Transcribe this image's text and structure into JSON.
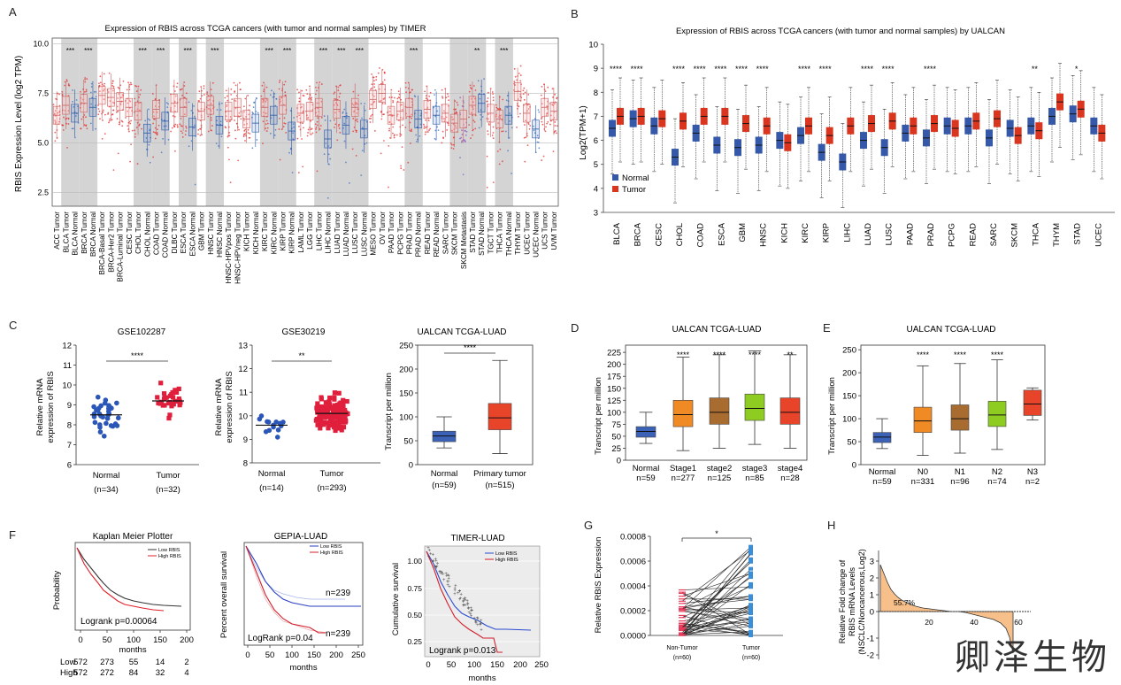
{
  "panel_letters": [
    "A",
    "B",
    "C",
    "D",
    "E",
    "F",
    "G",
    "H"
  ],
  "watermark": "卿泽生物",
  "chart_data": [
    {
      "id": "A",
      "type": "box",
      "title": "Expression of RBIS across TCGA cancers (with tumor and normal samples) by TIMER",
      "ylabel": "RBIS Expression Level (log2 TPM)",
      "yticks": [
        "2.5",
        "5.0",
        "7.5",
        "10.0"
      ],
      "ylim": [
        1.8,
        10.3
      ],
      "categories": [
        "ACC.Tumor",
        "BLCA.Tumor",
        "BLCA.Normal",
        "BRCA.Tumor",
        "BRCA.Normal",
        "BRCA-Basal.Tumor",
        "BRCA-Her2.Tumor",
        "BRCA-Luminal.Tumor",
        "CESC.Tumor",
        "CHOL.Tumor",
        "CHOL.Normal",
        "COAD.Tumor",
        "COAD.Normal",
        "DLBC.Tumor",
        "ESCA.Tumor",
        "ESCA.Normal",
        "GBM.Tumor",
        "HNSC.Tumor",
        "HNSC.Normal",
        "HNSC-HPVpos.Tumor",
        "HNSC-HPVneg.Tumor",
        "KICH.Tumor",
        "KICH.Normal",
        "KIRC.Tumor",
        "KIRC.Normal",
        "KIRP.Tumor",
        "KIRP.Normal",
        "LAML.Tumor",
        "LGG.Tumor",
        "LIHC.Tumor",
        "LIHC.Normal",
        "LUAD.Tumor",
        "LUAD.Normal",
        "LUSC.Tumor",
        "LUSC.Normal",
        "MESO.Tumor",
        "OV.Tumor",
        "PAAD.Tumor",
        "PCPG.Tumor",
        "PRAD.Tumor",
        "PRAD.Normal",
        "READ.Tumor",
        "READ.Normal",
        "SARC.Tumor",
        "SKCM.Tumor",
        "SKCM.Metastasis",
        "STAD.Tumor",
        "STAD.Normal",
        "TGCT.Tumor",
        "THCA.Tumor",
        "THCA.Normal",
        "THYM.Tumor",
        "UCEC.Tumor",
        "UCEC.Normal",
        "UCS.Tumor",
        "UVM.Tumor"
      ],
      "medians": [
        6.4,
        6.9,
        6.5,
        7.0,
        6.8,
        7.4,
        7.3,
        7.1,
        6.8,
        6.6,
        5.5,
        6.7,
        6.1,
        7.0,
        6.8,
        5.8,
        6.6,
        6.9,
        5.9,
        6.6,
        6.8,
        6.2,
        6.0,
        6.8,
        6.4,
        6.9,
        5.6,
        6.5,
        6.6,
        6.8,
        5.2,
        6.7,
        5.9,
        6.8,
        5.7,
        7.2,
        7.5,
        6.4,
        6.6,
        6.8,
        6.2,
        6.7,
        6.4,
        6.5,
        6.0,
        6.2,
        6.9,
        7.0,
        6.5,
        6.2,
        6.4,
        7.6,
        6.5,
        5.7,
        6.8,
        6.6
      ],
      "significance": [
        {
          "category": "BLCA.Tumor",
          "label": "***"
        },
        {
          "category": "BRCA.Tumor",
          "label": "***"
        },
        {
          "category": "CHOL.Tumor",
          "label": "***"
        },
        {
          "category": "COAD.Tumor",
          "label": "***"
        },
        {
          "category": "ESCA.Tumor",
          "label": "***"
        },
        {
          "category": "HNSC.Tumor",
          "label": "***"
        },
        {
          "category": "KIRC.Tumor",
          "label": "***"
        },
        {
          "category": "KIRP.Tumor",
          "label": "***"
        },
        {
          "category": "LIHC.Tumor",
          "label": "***"
        },
        {
          "category": "LUAD.Tumor",
          "label": "***"
        },
        {
          "category": "LUSC.Tumor",
          "label": "***"
        },
        {
          "category": "PRAD.Tumor",
          "label": "***"
        },
        {
          "category": "STAD.Tumor",
          "label": "**"
        },
        {
          "category": "THCA.Tumor",
          "label": "***"
        }
      ]
    },
    {
      "id": "B",
      "type": "box",
      "title": "Expression of RBIS across TCGA cancers (with tumor and normal samples) by UALCAN",
      "ylabel": "Log2(TPM+1)",
      "yticks": [
        "3",
        "4",
        "5",
        "6",
        "7",
        "8",
        "9",
        "10"
      ],
      "ylim": [
        3,
        10
      ],
      "legend": [
        "Normal",
        "Tumor"
      ],
      "categories": [
        "BLCA",
        "BRCA",
        "CESC",
        "CHOL",
        "COAD",
        "ESCA",
        "GBM",
        "HNSC",
        "KICH",
        "KIRC",
        "KIRP",
        "LIHC",
        "LUAD",
        "LUSC",
        "PAAD",
        "PRAD",
        "PCPG",
        "READ",
        "SARC",
        "SKCM",
        "THCA",
        "THYM",
        "STAD",
        "UCEC"
      ],
      "normal_medians": [
        6.5,
        6.9,
        6.6,
        5.3,
        6.3,
        5.8,
        5.7,
        5.8,
        6.0,
        6.2,
        5.5,
        5.1,
        6.0,
        5.7,
        6.3,
        6.1,
        6.6,
        6.6,
        6.1,
        6.5,
        6.6,
        7.0,
        7.1,
        6.6
      ],
      "tumor_medians": [
        7.0,
        7.0,
        6.9,
        6.8,
        7.0,
        7.0,
        6.7,
        6.6,
        5.9,
        6.6,
        6.2,
        6.6,
        6.7,
        6.8,
        6.6,
        6.7,
        6.5,
        6.8,
        6.9,
        6.2,
        6.4,
        7.6,
        7.3,
        6.3
      ],
      "significance": [
        "****",
        "****",
        "",
        "****",
        "****",
        "****",
        "****",
        "****",
        "",
        "****",
        "****",
        "",
        "****",
        "****",
        "",
        "****",
        "",
        "",
        "",
        "",
        "**",
        "",
        "*",
        ""
      ]
    },
    {
      "id": "C1",
      "type": "scatter",
      "title": "GSE102287",
      "ylabel_lines": [
        "Relative mRNA",
        "expression of RBIS"
      ],
      "yticks": [
        "6",
        "7",
        "8",
        "9",
        "10",
        "11",
        "12"
      ],
      "ylim": [
        6,
        12
      ],
      "groups": [
        {
          "name": "Normal",
          "n": "(n=34)",
          "mean": 8.5
        },
        {
          "name": "Tumor",
          "n": "(n=32)",
          "mean": 9.2
        }
      ],
      "significance": "****"
    },
    {
      "id": "C2",
      "type": "scatter",
      "title": "GSE30219",
      "ylabel_lines": [
        "Relative mRNA",
        "expression of RBIS"
      ],
      "yticks": [
        "8",
        "9",
        "10",
        "11",
        "12",
        "13"
      ],
      "ylim": [
        8,
        13
      ],
      "groups": [
        {
          "name": "Normal",
          "n": "(n=14)",
          "mean": 9.6
        },
        {
          "name": "Tumor",
          "n": "(n=293)",
          "mean": 10.1
        }
      ],
      "significance": "**"
    },
    {
      "id": "C3",
      "type": "box",
      "title": "UALCAN TCGA-LUAD",
      "ylabel": "Transcript per million",
      "yticks": [
        "0",
        "50",
        "100",
        "150",
        "200",
        "250"
      ],
      "ylim": [
        0,
        250
      ],
      "groups": [
        {
          "name": "Normal",
          "n": "(n=59)",
          "median": 60
        },
        {
          "name": "Primary tumor",
          "n": "(n=515)",
          "median": 98
        }
      ],
      "significance": "****"
    },
    {
      "id": "D",
      "type": "box",
      "title": "UALCAN TCGA-LUAD",
      "ylabel": "Transcript per million",
      "yticks": [
        "0",
        "25",
        "50",
        "75",
        "100",
        "125",
        "150",
        "175",
        "200",
        "225"
      ],
      "ylim": [
        0,
        240
      ],
      "groups": [
        {
          "name": "Normal",
          "n": "n=59",
          "median": 60
        },
        {
          "name": "Stage1",
          "n": "n=277",
          "median": 95
        },
        {
          "name": "stage2",
          "n": "n=125",
          "median": 100
        },
        {
          "name": "stage3",
          "n": "n=85",
          "median": 108
        },
        {
          "name": "stage4",
          "n": "n=28",
          "median": 100
        }
      ],
      "significance": [
        "",
        "****",
        "****",
        "****",
        "**"
      ]
    },
    {
      "id": "E",
      "type": "box",
      "title": "UALCAN TCGA-LUAD",
      "ylabel": "Transcript per million",
      "yticks": [
        "0",
        "50",
        "100",
        "150",
        "200",
        "250"
      ],
      "ylim": [
        0,
        260
      ],
      "groups": [
        {
          "name": "Normal",
          "n": "n=59",
          "median": 60
        },
        {
          "name": "N0",
          "n": "n=331",
          "median": 95
        },
        {
          "name": "N1",
          "n": "n=96",
          "median": 100
        },
        {
          "name": "N2",
          "n": "n=74",
          "median": 108
        },
        {
          "name": "N3",
          "n": "n=2",
          "median": 132
        }
      ],
      "significance": [
        "",
        "****",
        "****",
        "****",
        ""
      ]
    },
    {
      "id": "F1",
      "type": "line",
      "title": "Kaplan Meier Plotter",
      "ylabel": "Probability",
      "xlabel": "months",
      "xticks": [
        "0",
        "50",
        "100",
        "150",
        "200"
      ],
      "legend": [
        "Low RBIS",
        "High RBIS"
      ],
      "annotation": "Logrank p=0.00064",
      "risk_table": {
        "labels": [
          "Low",
          "High"
        ],
        "low": [
          "572",
          "273",
          "55",
          "14",
          "2"
        ],
        "high": [
          "572",
          "272",
          "84",
          "32",
          "4"
        ]
      }
    },
    {
      "id": "F2",
      "type": "line",
      "title": "GEPIA-LUAD",
      "ylabel": "Percent overall survival",
      "xlabel": "months",
      "xticks": [
        "0",
        "50",
        "100",
        "150",
        "200",
        "250"
      ],
      "legend": [
        "Low RBIS",
        "High RBIS"
      ],
      "annotation": "LogRank p=0.04",
      "n_labels": [
        "n=239",
        "n=239"
      ]
    },
    {
      "id": "F3",
      "type": "line",
      "title": "TIMER-LUAD",
      "ylabel": "Cumulative survival",
      "xlabel": "months",
      "xticks": [
        "0",
        "50",
        "100",
        "150",
        "200",
        "250"
      ],
      "yticks": [
        "0.25",
        "0.50",
        "0.75",
        "1.00"
      ],
      "legend": [
        "Low RBIS",
        "High RBIS"
      ],
      "annotation": "Logrank p=0.013"
    },
    {
      "id": "G",
      "type": "paired",
      "ylabel": "Relative RBIS Expression",
      "yticks": [
        "0.0000",
        "0.0002",
        "0.0004",
        "0.0006",
        "0.0008"
      ],
      "ylim": [
        0,
        0.0008
      ],
      "groups": [
        {
          "name": "Non-Tumor",
          "n": "(n=60)"
        },
        {
          "name": "Tumor",
          "n": "(n=60)"
        }
      ],
      "significance": "*"
    },
    {
      "id": "H",
      "type": "area",
      "ylabel_lines": [
        "Relative Fold change of",
        "RBIS mRNA Levels",
        "(NSCLC/Noncancerous,Log2)"
      ],
      "yticks": [
        "-2",
        "-1",
        "0",
        "1",
        "2",
        "3"
      ],
      "xticks": [
        "20",
        "40",
        "60"
      ],
      "annotation": "55.7%"
    }
  ]
}
